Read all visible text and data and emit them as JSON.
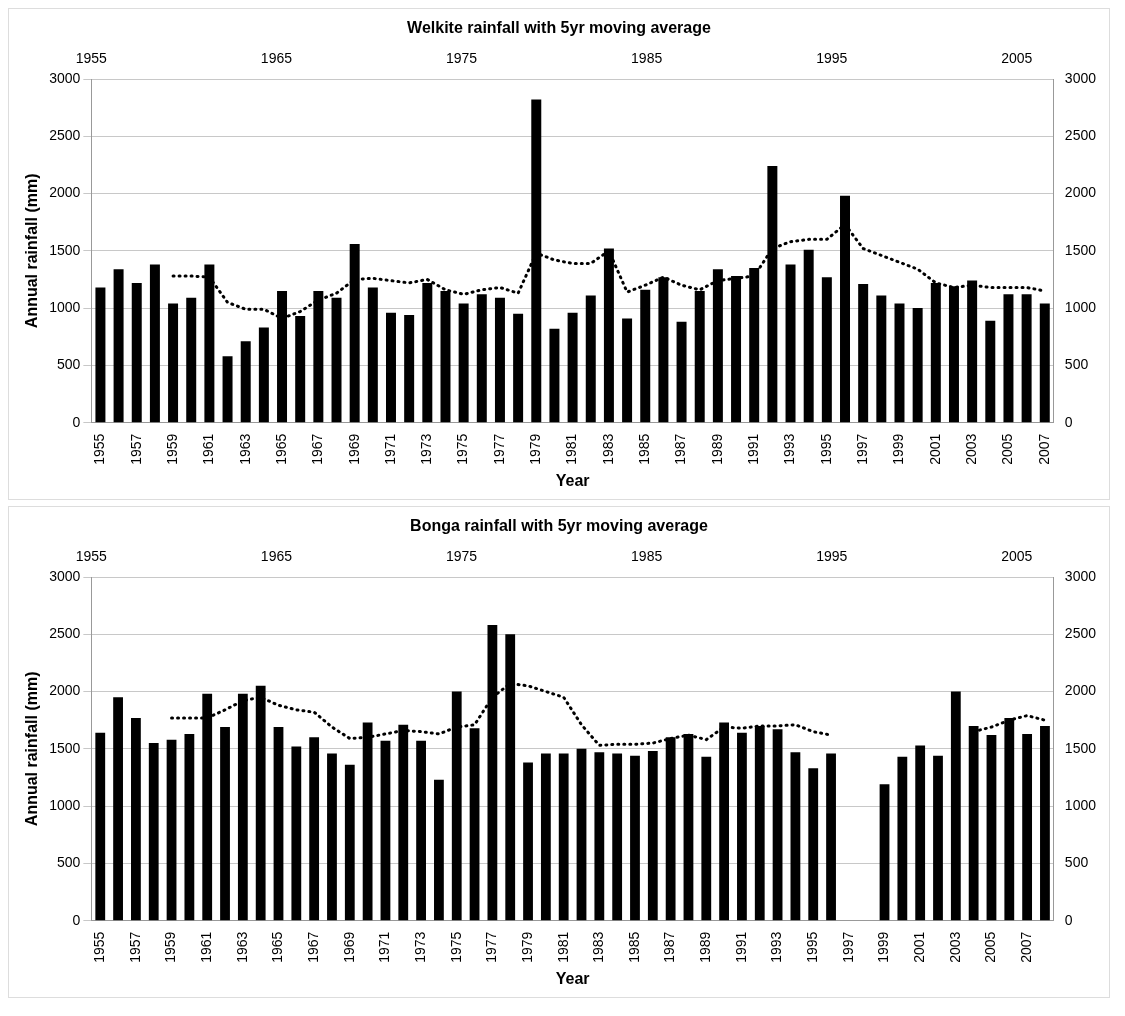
{
  "chart_data": [
    {
      "type": "bar",
      "title": "Welkite rainfall with 5yr moving average",
      "xlabel": "Year",
      "ylabel": "Annual rainfall (mm)",
      "categories": [
        "1955",
        null,
        "1957",
        null,
        "1959",
        null,
        "1961",
        null,
        "1963",
        null,
        "1965",
        null,
        "1967",
        null,
        "1969",
        null,
        "1971",
        null,
        "1973",
        null,
        "1975",
        null,
        "1977",
        null,
        "1979",
        null,
        "1981",
        null,
        "1983",
        null,
        "1985",
        null,
        "1987",
        null,
        "1989",
        null,
        "1991",
        null,
        "1993",
        null,
        "1995",
        null,
        "1997",
        null,
        "1999",
        null,
        "2001",
        null,
        "2003",
        null,
        "2005",
        null,
        "2007"
      ],
      "series": [
        {
          "color": "#000000",
          "values": [
            1180,
            1340,
            1220,
            1380,
            1040,
            1090,
            1380,
            580,
            710,
            830,
            1150,
            930,
            1150,
            1090,
            1560,
            1180,
            960,
            940,
            1220,
            1150,
            1040,
            1120,
            1090,
            950,
            2820,
            820,
            960,
            1110,
            1520,
            910,
            1160,
            1270,
            880,
            1150,
            1340,
            1280,
            1350,
            2240,
            1380,
            1510,
            1270,
            1980,
            1210,
            1110,
            1040,
            1000,
            1220,
            1190,
            1240,
            890,
            1120,
            1120,
            1040
          ]
        },
        {
          "type": "line",
          "color": "#000000",
          "line_style": "dotted",
          "values": [
            null,
            null,
            null,
            null,
            1280,
            1280,
            1270,
            1050,
            990,
            990,
            910,
            970,
            1070,
            1130,
            1250,
            1260,
            1240,
            1220,
            1250,
            1160,
            1120,
            1160,
            1180,
            1130,
            1480,
            1420,
            1390,
            1390,
            1500,
            1140,
            1200,
            1270,
            1200,
            1160,
            1240,
            1260,
            1280,
            1520,
            1580,
            1600,
            1600,
            1730,
            1520,
            1460,
            1400,
            1340,
            1220,
            1180,
            1200,
            1180,
            1180,
            1180,
            1150
          ]
        }
      ],
      "ylim": [
        0,
        3000
      ],
      "yticks": [
        0,
        500,
        1000,
        1500,
        2000,
        2500,
        3000
      ],
      "y2lim": [
        0,
        3000
      ],
      "y2ticks": [
        0,
        500,
        1000,
        1500,
        2000,
        2500,
        3000
      ],
      "x2lim": [
        1955,
        2007
      ],
      "x2ticks": [
        1955,
        1965,
        1975,
        1985,
        1995,
        2005
      ],
      "grid": "y",
      "marker": "none",
      "legend": false
    },
    {
      "type": "bar",
      "title": "Bonga rainfall with 5yr moving average",
      "xlabel": "Year",
      "ylabel": "Annual rainfall (mm)",
      "categories": [
        "1955",
        null,
        "1957",
        null,
        "1959",
        null,
        "1961",
        null,
        "1963",
        null,
        "1965",
        null,
        "1967",
        null,
        "1969",
        null,
        "1971",
        null,
        "1973",
        null,
        "1975",
        null,
        "1977",
        null,
        "1979",
        null,
        "1981",
        null,
        "1983",
        null,
        "1985",
        null,
        "1987",
        null,
        "1989",
        null,
        "1991",
        null,
        "1993",
        null,
        "1995",
        null,
        "1997",
        null,
        "1999",
        null,
        "2001",
        null,
        "2003",
        null,
        "2005",
        null,
        "2007",
        null
      ],
      "series": [
        {
          "color": "#000000",
          "values": [
            1640,
            1950,
            1770,
            1550,
            1580,
            1630,
            1980,
            1690,
            1980,
            2050,
            1690,
            1520,
            1600,
            1460,
            1360,
            1730,
            1570,
            1710,
            1570,
            1230,
            2000,
            1680,
            2580,
            2500,
            1380,
            1460,
            1460,
            1500,
            1470,
            1460,
            1440,
            1480,
            1600,
            1630,
            1430,
            1730,
            1640,
            1700,
            1670,
            1470,
            1330,
            1460,
            null,
            null,
            1190,
            1430,
            1530,
            1440,
            2000,
            1700,
            1620,
            1770,
            1630,
            1700
          ]
        },
        {
          "type": "line",
          "color": "#000000",
          "line_style": "dotted",
          "values": [
            null,
            null,
            null,
            null,
            1770,
            1770,
            1770,
            1840,
            1920,
            1950,
            1880,
            1840,
            1820,
            1690,
            1590,
            1600,
            1630,
            1660,
            1650,
            1630,
            1690,
            1710,
            1950,
            2070,
            2050,
            2000,
            1950,
            1710,
            1530,
            1540,
            1540,
            1550,
            1590,
            1620,
            1580,
            1690,
            1680,
            1700,
            1700,
            1710,
            1650,
            1620,
            null,
            null,
            null,
            null,
            null,
            null,
            null,
            1650,
            1690,
            1750,
            1790,
            1750
          ]
        }
      ],
      "ylim": [
        0,
        3000
      ],
      "yticks": [
        0,
        500,
        1000,
        1500,
        2000,
        2500,
        3000
      ],
      "y2lim": [
        0,
        3000
      ],
      "y2ticks": [
        0,
        500,
        1000,
        1500,
        2000,
        2500,
        3000
      ],
      "x2lim": [
        1955,
        2007
      ],
      "x2ticks": [
        1955,
        1965,
        1975,
        1985,
        1995,
        2005
      ],
      "grid": "y",
      "marker": "none",
      "legend": false
    }
  ]
}
